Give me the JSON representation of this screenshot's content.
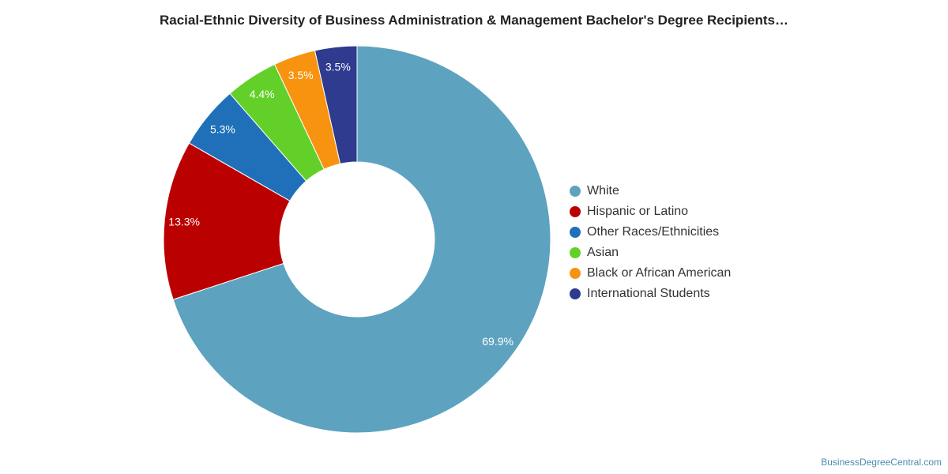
{
  "chart_data": {
    "type": "pie",
    "title": "Racial-Ethnic Diversity of Business Administration & Management Bachelor's Degree Recipients…",
    "donut": true,
    "legend_position": "right",
    "slices": [
      {
        "label": "White",
        "value": 69.9,
        "value_label": "69.9%",
        "color": "#5da3c0"
      },
      {
        "label": "Hispanic or Latino",
        "value": 13.3,
        "value_label": "13.3%",
        "color": "#bb0000"
      },
      {
        "label": "Other Races/Ethnicities",
        "value": 5.3,
        "value_label": "5.3%",
        "color": "#1f70b8"
      },
      {
        "label": "Asian",
        "value": 4.4,
        "value_label": "4.4%",
        "color": "#63d02a"
      },
      {
        "label": "Black or African American",
        "value": 3.5,
        "value_label": "3.5%",
        "color": "#f7930f"
      },
      {
        "label": "International Students",
        "value": 3.5,
        "value_label": "3.5%",
        "color": "#2e3b8f"
      }
    ]
  },
  "watermark": "BusinessDegreeCentral.com"
}
